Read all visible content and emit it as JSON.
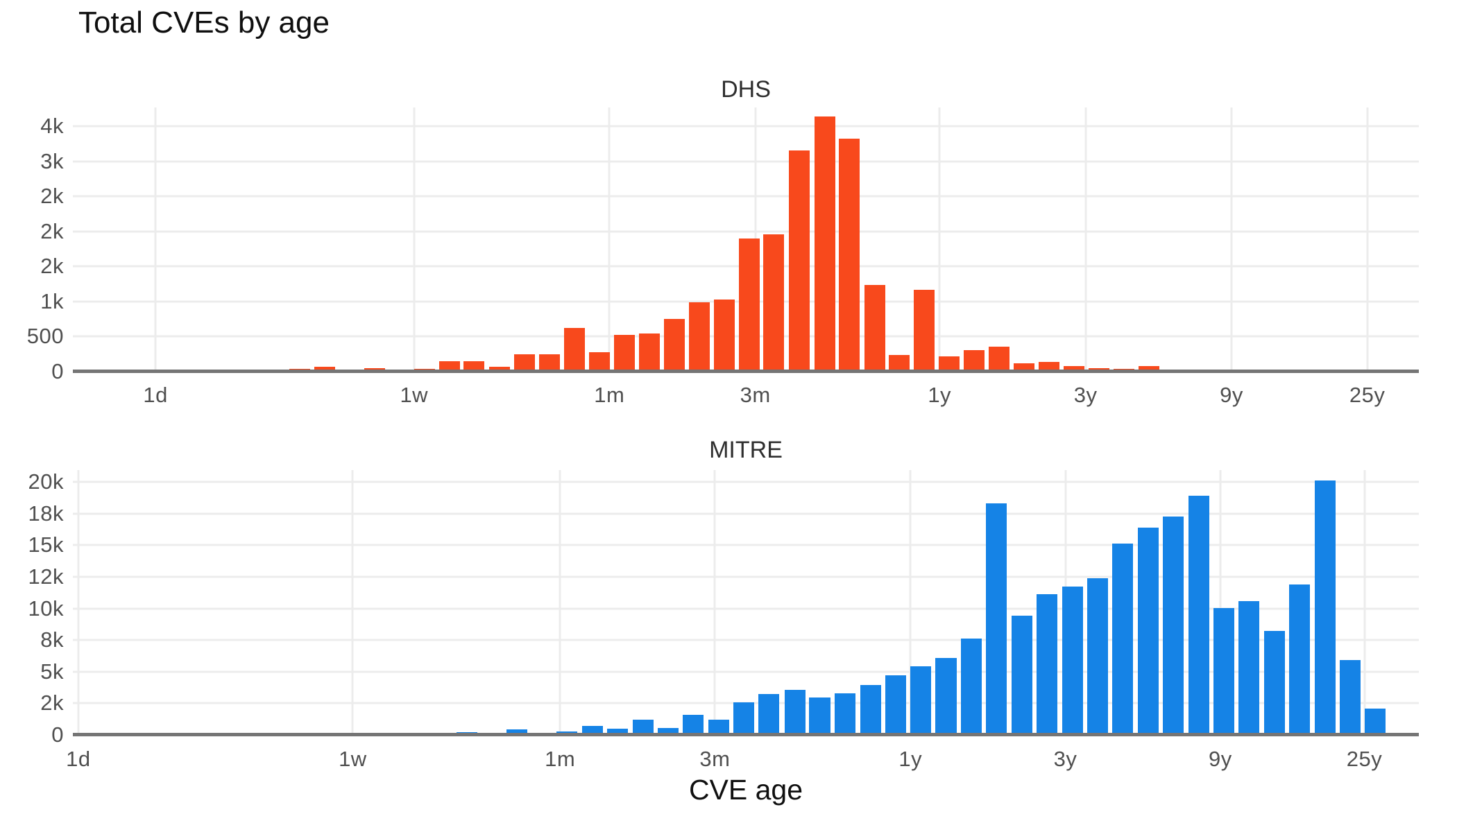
{
  "title": "Total CVEs by age",
  "xlabel": "CVE age",
  "colors": {
    "dhs_bar": "#F8491C",
    "mitre_bar": "#1583E6",
    "gridline": "#ECECEC",
    "axis_line": "#757575",
    "tick_label": "#4F4F4F",
    "title_text": "#0F0F0F",
    "facet_title": "#2E2E2E"
  },
  "chart_data": [
    {
      "type": "bar",
      "title": "DHS",
      "color": "#F8491C",
      "ylabel": "",
      "grid": true,
      "ylim": [
        0,
        3772
      ],
      "x_scale": "log",
      "x_domain_days": [
        0.537,
        13460
      ],
      "bar_width_frac": 0.0155,
      "y_ticks": [
        {
          "value": 0,
          "label": "0"
        },
        {
          "value": 500,
          "label": "500"
        },
        {
          "value": 1000,
          "label": "1k"
        },
        {
          "value": 1500,
          "label": "2k"
        },
        {
          "value": 2000,
          "label": "2k"
        },
        {
          "value": 2500,
          "label": "2k"
        },
        {
          "value": 3000,
          "label": "3k"
        },
        {
          "value": 3500,
          "label": "4k"
        }
      ],
      "x_ticks": [
        {
          "days": 1,
          "label": "1d"
        },
        {
          "days": 7,
          "label": "1w"
        },
        {
          "days": 30.44,
          "label": "1m"
        },
        {
          "days": 91.31,
          "label": "3m"
        },
        {
          "days": 365.25,
          "label": "1y"
        },
        {
          "days": 1095.75,
          "label": "3y"
        },
        {
          "days": 3287.25,
          "label": "9y"
        },
        {
          "days": 9131.25,
          "label": "25y"
        }
      ],
      "bars": {
        "ages_days": [
          2.96,
          3.58,
          4.31,
          5.21,
          6.29,
          7.58,
          9.15,
          11.0,
          13.3,
          16.1,
          19.4,
          23.4,
          28.3,
          34.1,
          41.2,
          49.7,
          60.0,
          72.4,
          87.3,
          105,
          127,
          154,
          185,
          224,
          270,
          326,
          393,
          474,
          572,
          691,
          833,
          1006,
          1214,
          1465,
          1768,
          2133,
          2574
        ],
        "values": [
          35,
          65,
          15,
          50,
          0,
          35,
          150,
          150,
          70,
          250,
          250,
          620,
          275,
          520,
          545,
          750,
          990,
          1030,
          1900,
          1960,
          3160,
          3640,
          3330,
          1240,
          240,
          1165,
          220,
          310,
          360,
          120,
          135,
          80,
          50,
          40,
          75,
          0,
          15
        ]
      }
    },
    {
      "type": "bar",
      "title": "MITRE",
      "color": "#1583E6",
      "ylabel": "",
      "grid": true,
      "ylim": [
        0,
        20932
      ],
      "x_scale": "log",
      "x_domain_days": [
        0.962,
        13434
      ],
      "bar_width_frac": 0.0155,
      "y_ticks": [
        {
          "value": 0,
          "label": "0"
        },
        {
          "value": 2500,
          "label": "2k"
        },
        {
          "value": 5000,
          "label": "5k"
        },
        {
          "value": 7500,
          "label": "8k"
        },
        {
          "value": 10000,
          "label": "10k"
        },
        {
          "value": 12500,
          "label": "12k"
        },
        {
          "value": 15000,
          "label": "15k"
        },
        {
          "value": 17500,
          "label": "18k"
        },
        {
          "value": 20000,
          "label": "20k"
        }
      ],
      "x_ticks": [
        {
          "days": 1,
          "label": "1d"
        },
        {
          "days": 7,
          "label": "1w"
        },
        {
          "days": 30.44,
          "label": "1m"
        },
        {
          "days": 91.31,
          "label": "3m"
        },
        {
          "days": 365.25,
          "label": "1y"
        },
        {
          "days": 1095.75,
          "label": "3y"
        },
        {
          "days": 3287.25,
          "label": "9y"
        },
        {
          "days": 9131.25,
          "label": "25y"
        }
      ],
      "bars": {
        "ages_days": [
          15.7,
          18.7,
          22.4,
          26.8,
          32.0,
          38.3,
          45.8,
          54.8,
          65.6,
          78.4,
          93.8,
          112,
          134,
          161,
          192,
          230,
          275,
          329,
          393,
          470,
          562,
          673,
          805,
          962,
          1151,
          1377,
          1647,
          1970,
          2356,
          2818,
          3371,
          4032,
          4823,
          5768,
          6899,
          8252,
          9872
        ],
        "values": [
          220,
          190,
          450,
          70,
          280,
          700,
          520,
          1200,
          560,
          1570,
          1200,
          2580,
          3250,
          3550,
          2950,
          3300,
          3950,
          4700,
          5400,
          6100,
          7600,
          18300,
          9400,
          11100,
          11700,
          12400,
          15100,
          16400,
          17250,
          18900,
          10050,
          10550,
          8200,
          11900,
          20100,
          5900,
          2100
        ]
      }
    }
  ]
}
